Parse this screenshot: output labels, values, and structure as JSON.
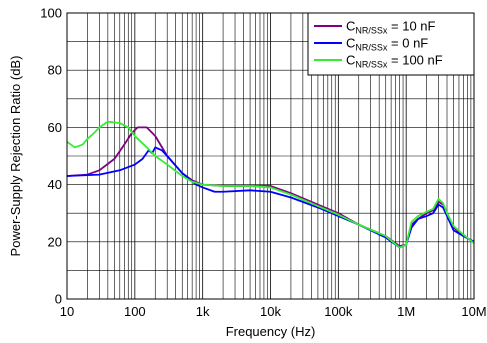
{
  "chart_data": {
    "type": "line",
    "title": "",
    "xlabel": "Frequency (Hz)",
    "ylabel": "Power-Supply Rejection Ratio (dB)",
    "x_scale": "log",
    "xlim": [
      10,
      10000000
    ],
    "ylim": [
      0,
      100
    ],
    "grid": true,
    "legend_position": "top-right",
    "x_ticks": [
      {
        "value": 10,
        "label": "10"
      },
      {
        "value": 100,
        "label": "100"
      },
      {
        "value": 1000,
        "label": "1k"
      },
      {
        "value": 10000,
        "label": "10k"
      },
      {
        "value": 100000,
        "label": "100k"
      },
      {
        "value": 1000000,
        "label": "1M"
      },
      {
        "value": 10000000,
        "label": "10M"
      }
    ],
    "y_ticks": [
      {
        "value": 0,
        "label": "0"
      },
      {
        "value": 20,
        "label": "20"
      },
      {
        "value": 40,
        "label": "40"
      },
      {
        "value": 60,
        "label": "60"
      },
      {
        "value": 80,
        "label": "80"
      },
      {
        "value": 100,
        "label": "100"
      }
    ],
    "series": [
      {
        "name_main": "C",
        "name_sub": "NR/SSx",
        "name_rest": " = 10 nF",
        "color": "#800080",
        "points": [
          [
            10,
            43
          ],
          [
            20,
            43.5
          ],
          [
            30,
            45
          ],
          [
            50,
            49
          ],
          [
            70,
            54
          ],
          [
            90,
            58
          ],
          [
            110,
            60
          ],
          [
            150,
            60
          ],
          [
            200,
            57
          ],
          [
            300,
            50
          ],
          [
            500,
            44
          ],
          [
            700,
            41.5
          ],
          [
            1000,
            40
          ],
          [
            2000,
            39.5
          ],
          [
            5000,
            39.5
          ],
          [
            10000,
            39.5
          ],
          [
            20000,
            37
          ],
          [
            50000,
            33
          ],
          [
            100000,
            30
          ],
          [
            200000,
            26
          ],
          [
            500000,
            22
          ],
          [
            800000,
            18.5
          ],
          [
            1000000,
            19
          ],
          [
            1200000,
            26
          ],
          [
            1500000,
            28
          ],
          [
            2000000,
            30
          ],
          [
            2500000,
            31
          ],
          [
            3000000,
            34
          ],
          [
            3500000,
            33
          ],
          [
            4000000,
            30
          ],
          [
            5000000,
            25
          ],
          [
            7000000,
            22
          ],
          [
            10000000,
            20
          ]
        ]
      },
      {
        "name_main": "C",
        "name_sub": "NR/SSx",
        "name_rest": " = 0 nF",
        "color": "#0000ff",
        "points": [
          [
            10,
            43
          ],
          [
            30,
            43.5
          ],
          [
            60,
            45
          ],
          [
            100,
            47
          ],
          [
            130,
            49
          ],
          [
            160,
            52
          ],
          [
            180,
            51
          ],
          [
            200,
            53
          ],
          [
            250,
            52
          ],
          [
            300,
            50
          ],
          [
            500,
            44
          ],
          [
            800,
            40
          ],
          [
            1000,
            39
          ],
          [
            1500,
            37.5
          ],
          [
            2000,
            37.5
          ],
          [
            5000,
            38
          ],
          [
            10000,
            37.5
          ],
          [
            20000,
            35.5
          ],
          [
            50000,
            32
          ],
          [
            100000,
            29
          ],
          [
            200000,
            26
          ],
          [
            500000,
            21.5
          ],
          [
            800000,
            18
          ],
          [
            1000000,
            19
          ],
          [
            1200000,
            25
          ],
          [
            1500000,
            28
          ],
          [
            2000000,
            29
          ],
          [
            2500000,
            30
          ],
          [
            3000000,
            33
          ],
          [
            3500000,
            32
          ],
          [
            4000000,
            29
          ],
          [
            5000000,
            24
          ],
          [
            7000000,
            22
          ],
          [
            10000000,
            20
          ]
        ]
      },
      {
        "name_main": "C",
        "name_sub": "NR/SSx",
        "name_rest": " = 100 nF",
        "color": "#33ee33",
        "points": [
          [
            10,
            55
          ],
          [
            13,
            53
          ],
          [
            17,
            54
          ],
          [
            20,
            56
          ],
          [
            25,
            58
          ],
          [
            30,
            60
          ],
          [
            40,
            62
          ],
          [
            60,
            61.5
          ],
          [
            80,
            60
          ],
          [
            100,
            57
          ],
          [
            150,
            53
          ],
          [
            200,
            50
          ],
          [
            300,
            47
          ],
          [
            500,
            43
          ],
          [
            700,
            41
          ],
          [
            1000,
            40
          ],
          [
            2000,
            39.5
          ],
          [
            5000,
            39.5
          ],
          [
            10000,
            39
          ],
          [
            20000,
            36.5
          ],
          [
            50000,
            32.5
          ],
          [
            100000,
            29.5
          ],
          [
            200000,
            26
          ],
          [
            500000,
            22
          ],
          [
            800000,
            18
          ],
          [
            1000000,
            19
          ],
          [
            1200000,
            27
          ],
          [
            1500000,
            29
          ],
          [
            2000000,
            30.5
          ],
          [
            2500000,
            31.5
          ],
          [
            3000000,
            35
          ],
          [
            3500000,
            33.5
          ],
          [
            4000000,
            30
          ],
          [
            5000000,
            25.5
          ],
          [
            7000000,
            22.5
          ],
          [
            10000000,
            19.5
          ]
        ]
      }
    ]
  }
}
